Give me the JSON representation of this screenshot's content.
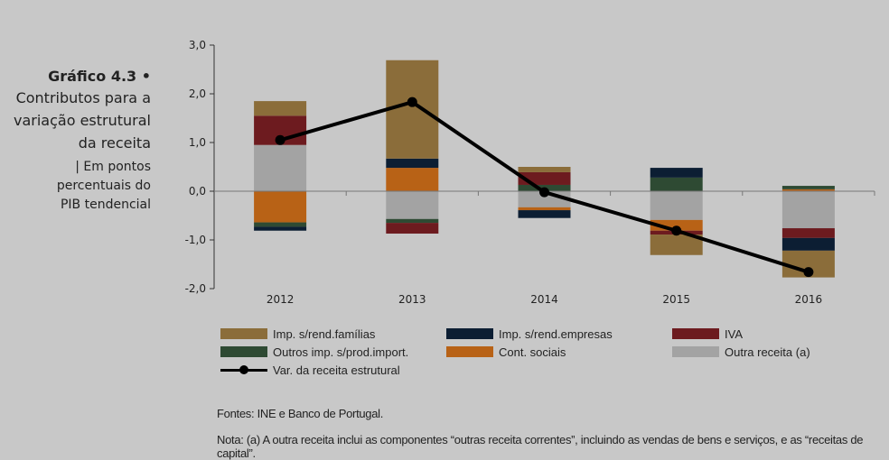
{
  "title": {
    "number": "Gráfico 4.3",
    "bullet": "•",
    "lines": [
      "Contributos para a",
      "variação estrutural",
      "da receita"
    ],
    "subtitle_lines": [
      "| Em pontos",
      "percentuais do",
      "PIB tendencial"
    ]
  },
  "chart_data": {
    "type": "bar",
    "stacked": true,
    "title": "Contributos para a variação estrutural da receita",
    "ylabel": "Em pontos percentuais do PIB tendencial",
    "xlabel": "",
    "categories": [
      "2012",
      "2013",
      "2014",
      "2015",
      "2016"
    ],
    "ylim": [
      -2.0,
      3.0
    ],
    "yticks": [
      3.0,
      2.0,
      1.0,
      0.0,
      -1.0,
      -2.0
    ],
    "ytick_labels": [
      "3,0",
      "2,0",
      "1,0",
      "0,0",
      "-1,0",
      "-2,0"
    ],
    "grid": false,
    "legend_position": "bottom",
    "series": [
      {
        "name": "Imp. s/rend.famílias",
        "color": "#8b6d3a",
        "values": [
          0.3,
          2.02,
          0.11,
          -0.42,
          -0.55
        ]
      },
      {
        "name": "Imp. s/rend.empresas",
        "color": "#0c1e33",
        "values": [
          -0.08,
          0.19,
          -0.16,
          0.2,
          -0.26
        ]
      },
      {
        "name": "IVA",
        "color": "#6d1b1f",
        "values": [
          0.6,
          -0.22,
          0.26,
          -0.08,
          -0.2
        ]
      },
      {
        "name": "Outros imp. s/prod.import.",
        "color": "#2e4a33",
        "values": [
          -0.09,
          -0.08,
          0.13,
          0.28,
          0.07
        ]
      },
      {
        "name": "Cont. sociais",
        "color": "#b86216",
        "values": [
          -0.64,
          0.48,
          -0.06,
          -0.22,
          0.04
        ]
      },
      {
        "name": "Outra receita (a)",
        "color": "#a3a3a3",
        "values": [
          0.95,
          -0.57,
          -0.33,
          -0.59,
          -0.76
        ]
      }
    ],
    "stack_order_positive": [
      "Outra receita (a)",
      "Cont. sociais",
      "Outros imp. s/prod.import.",
      "IVA",
      "Imp. s/rend.empresas",
      "Imp. s/rend.famílias"
    ],
    "stack_order_negative": [
      "Outra receita (a)",
      "Cont. sociais",
      "Outros imp. s/prod.import.",
      "IVA",
      "Imp. s/rend.empresas",
      "Imp. s/rend.famílias"
    ],
    "line_series": {
      "name": "Var. da receita estrutural",
      "color": "#000000",
      "values": [
        1.05,
        1.83,
        -0.02,
        -0.81,
        -1.66
      ]
    }
  },
  "legend": [
    {
      "label": "Imp. s/rend.famílias",
      "color": "#8b6d3a",
      "kind": "bar"
    },
    {
      "label": "Imp. s/rend.empresas",
      "color": "#0c1e33",
      "kind": "bar"
    },
    {
      "label": "IVA",
      "color": "#6d1b1f",
      "kind": "bar"
    },
    {
      "label": "Outros imp. s/prod.import.",
      "color": "#2e4a33",
      "kind": "bar"
    },
    {
      "label": "Cont. sociais",
      "color": "#b86216",
      "kind": "bar"
    },
    {
      "label": "Outra receita (a)",
      "color": "#a3a3a3",
      "kind": "bar"
    },
    {
      "label": "Var. da receita estrutural",
      "color": "#000000",
      "kind": "line"
    }
  ],
  "notes": {
    "sources": "Fontes: INE e Banco de Portugal.",
    "note": "Nota: (a) A outra receita inclui as componentes “outras receita correntes”, incluindo as vendas de bens e serviços, e as “receitas de capital”."
  }
}
